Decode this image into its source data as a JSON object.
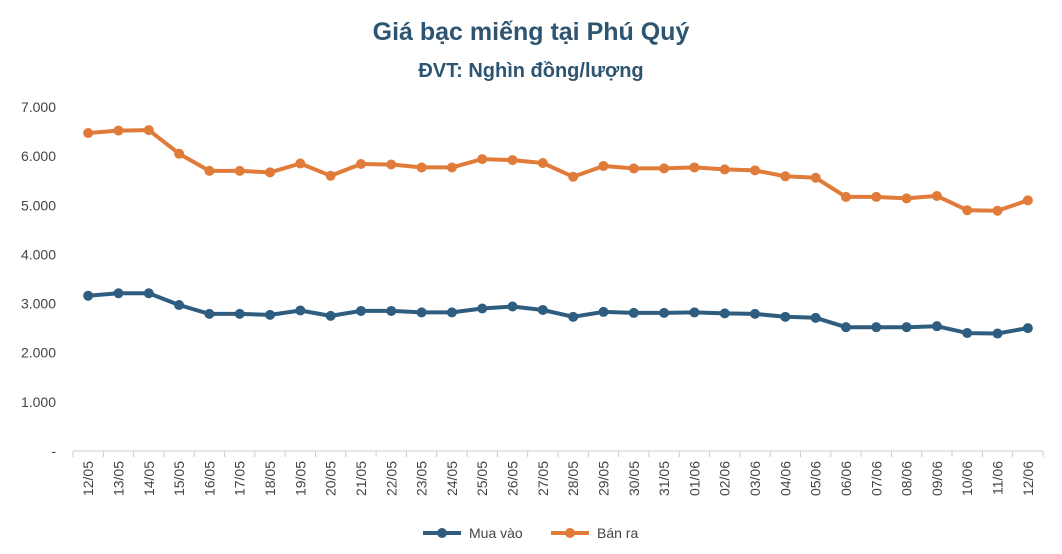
{
  "chart_data": {
    "type": "line",
    "title": "Giá bạc miếng tại Phú Quý",
    "subtitle": "ĐVT: Nghìn đồng/lượng",
    "xlabel": "",
    "ylabel": "",
    "categories": [
      "12/05",
      "13/05",
      "14/05",
      "15/05",
      "16/05",
      "17/05",
      "18/05",
      "19/05",
      "20/05",
      "21/05",
      "22/05",
      "23/05",
      "24/05",
      "25/05",
      "26/05",
      "27/05",
      "28/05",
      "29/05",
      "30/05",
      "31/05",
      "01/06",
      "02/06",
      "03/06",
      "04/06",
      "05/06",
      "06/06",
      "07/06",
      "08/06",
      "09/06",
      "10/06",
      "11/06",
      "12/06"
    ],
    "y_ticks": [
      "-",
      "1.000",
      "2.000",
      "3.000",
      "4.000",
      "5.000",
      "6.000",
      "7.000"
    ],
    "ylim": [
      0,
      7000
    ],
    "grid": false,
    "legend_position": "bottom",
    "series": [
      {
        "name": "Mua vào",
        "color": "#2e5d80",
        "values": [
          3160,
          3210,
          3210,
          2970,
          2790,
          2790,
          2770,
          2860,
          2750,
          2850,
          2850,
          2820,
          2820,
          2900,
          2940,
          2870,
          2730,
          2830,
          2810,
          2810,
          2820,
          2800,
          2790,
          2730,
          2710,
          2520,
          2520,
          2520,
          2540,
          2400,
          2390,
          2500
        ]
      },
      {
        "name": "Bán ra",
        "color": "#e07b39",
        "values": [
          6470,
          6520,
          6530,
          6050,
          5700,
          5700,
          5670,
          5850,
          5600,
          5840,
          5830,
          5770,
          5770,
          5940,
          5920,
          5860,
          5580,
          5800,
          5750,
          5750,
          5770,
          5730,
          5710,
          5590,
          5560,
          5170,
          5170,
          5140,
          5190,
          4900,
          4890,
          5100
        ]
      }
    ]
  }
}
